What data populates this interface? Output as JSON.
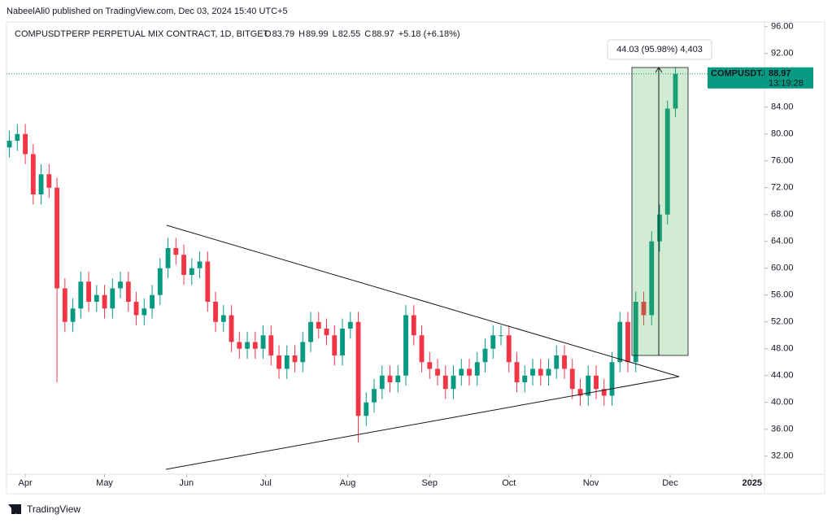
{
  "header": {
    "published": "NabeelAli0 published on TradingView.com, Dec 03, 2024 15:40 UTC+5",
    "footer": "TradingView"
  },
  "chart_data": {
    "type": "candlestick",
    "title": "COMPUSDTPERP PERPETUAL MIX CONTRACT, 1D, BITGET",
    "ohlc_legend": [
      {
        "key": "O",
        "value": 83.79
      },
      {
        "key": "H",
        "value": 89.99
      },
      {
        "key": "L",
        "value": 82.55
      },
      {
        "key": "C",
        "value": 88.97
      }
    ],
    "change": "+5.18 (+6.18%)",
    "up_color": "#089981",
    "down_color": "#f23645",
    "x": [
      -6,
      -3,
      0,
      3,
      6,
      9,
      12,
      15,
      18,
      21,
      24,
      27,
      30,
      33,
      36,
      39,
      42,
      45,
      48,
      51,
      54,
      57,
      60,
      63,
      66,
      69,
      72,
      75,
      78,
      81,
      84,
      87,
      90,
      93,
      96,
      99,
      102,
      105,
      108,
      111,
      114,
      117,
      120,
      123,
      126,
      129,
      132,
      135,
      138,
      141,
      144,
      147,
      150,
      153,
      156,
      159,
      162,
      165,
      168,
      171,
      174,
      177,
      180,
      183,
      186,
      189,
      192,
      195,
      198,
      201,
      204,
      207,
      210,
      213,
      216,
      219,
      222,
      225,
      228,
      231,
      234,
      237,
      240,
      243,
      246
    ],
    "open": [
      78,
      79,
      80,
      77,
      71,
      74,
      72,
      57,
      52,
      54,
      58,
      55,
      56,
      54,
      57,
      58,
      55,
      53,
      54,
      56,
      60,
      63,
      62,
      59,
      60,
      61,
      55,
      52,
      53,
      49,
      48,
      49,
      48,
      50,
      47,
      45,
      47,
      46,
      49,
      52,
      51,
      50,
      47,
      51,
      52,
      38,
      40,
      42,
      44,
      43,
      44,
      53,
      50,
      46,
      45,
      44,
      42,
      44,
      45,
      44,
      46,
      48,
      50,
      50,
      46,
      43,
      44,
      45,
      44,
      45,
      47,
      45,
      42,
      41,
      44,
      42,
      41,
      46,
      52,
      46,
      55,
      53,
      64,
      68,
      83.79
    ],
    "high": [
      80.5,
      81.5,
      81.5,
      78.5,
      75.5,
      75.5,
      73.5,
      58.5,
      55.5,
      59.5,
      59.5,
      57.5,
      57.5,
      58.5,
      59.5,
      59.5,
      56.5,
      55.5,
      57.5,
      61.5,
      64.5,
      64.5,
      63.5,
      61.5,
      62.5,
      62.5,
      56.5,
      54.5,
      54.5,
      50.5,
      50.5,
      50.5,
      51.5,
      51.5,
      48.5,
      48.5,
      48.5,
      50.5,
      53.5,
      53.5,
      52.5,
      51.5,
      52.5,
      53.5,
      53.5,
      41.5,
      43.5,
      45.5,
      45.5,
      45.5,
      54.5,
      54.5,
      51.5,
      47.5,
      46.5,
      45.5,
      45.5,
      46.5,
      46.5,
      47.5,
      49.5,
      51.5,
      51.5,
      51.5,
      47.5,
      45.5,
      46.5,
      46.5,
      46.5,
      48.5,
      48.5,
      46.5,
      43.5,
      45.5,
      45.5,
      43.5,
      47.5,
      53.5,
      53.5,
      56.5,
      56.5,
      65.5,
      69.5,
      85,
      89.99
    ],
    "low": [
      76.5,
      77.5,
      75.5,
      69.5,
      69.5,
      70.5,
      43,
      50.5,
      50.5,
      52.5,
      53.5,
      53.5,
      52.5,
      52.5,
      55.5,
      53.5,
      51.5,
      51.5,
      52.5,
      54.5,
      58.5,
      60.5,
      57.5,
      57.5,
      58.5,
      53.5,
      50.5,
      50.5,
      47.5,
      46.5,
      46.5,
      46.5,
      46.5,
      45.5,
      43.5,
      43.5,
      44.5,
      44.5,
      47.5,
      49.5,
      48.5,
      45.5,
      45.5,
      49.5,
      34,
      36.5,
      38.5,
      40.5,
      41.5,
      41.5,
      42.5,
      48.5,
      44.5,
      43.5,
      42.5,
      40.5,
      40.5,
      42.5,
      42.5,
      42.5,
      44.5,
      46.5,
      48.5,
      44.5,
      41.5,
      41.5,
      42.5,
      42.5,
      42.5,
      43.5,
      43.5,
      40.5,
      39.5,
      39.5,
      40.5,
      39.5,
      39.5,
      44.5,
      44.5,
      44.5,
      51.5,
      51.5,
      62.5,
      66.5,
      82.55
    ],
    "close": [
      79,
      80,
      77,
      71,
      74,
      72,
      57,
      52,
      54,
      58,
      55,
      56,
      54,
      57,
      58,
      55,
      53,
      54,
      56,
      60,
      63,
      62,
      59,
      60,
      61,
      55,
      52,
      53,
      49,
      48,
      49,
      48,
      50,
      47,
      45,
      47,
      46,
      49,
      52,
      51,
      50,
      47,
      51,
      52,
      38,
      40,
      42,
      44,
      43,
      44,
      53,
      50,
      46,
      45,
      44,
      42,
      44,
      45,
      44,
      46,
      48,
      50,
      50,
      46,
      43,
      44,
      45,
      44,
      45,
      47,
      45,
      42,
      41,
      44,
      42,
      41,
      46,
      52,
      46,
      55,
      53,
      64,
      68,
      83.79,
      88.97
    ],
    "xlim": [
      -7.1,
      279.7
    ],
    "xticks": [
      {
        "value": 0,
        "label": "Apr"
      },
      {
        "value": 30,
        "label": "May"
      },
      {
        "value": 61,
        "label": "Jun"
      },
      {
        "value": 91,
        "label": "Jul"
      },
      {
        "value": 122,
        "label": "Aug"
      },
      {
        "value": 153,
        "label": "Sep"
      },
      {
        "value": 183,
        "label": "Oct"
      },
      {
        "value": 214,
        "label": "Nov"
      },
      {
        "value": 244,
        "label": "Dec"
      },
      {
        "value": 275,
        "label": "2025"
      }
    ],
    "ylim": [
      29.3,
      96.7
    ],
    "yticks": [
      {
        "value": 32,
        "label": "32.00"
      },
      {
        "value": 36,
        "label": "36.00"
      },
      {
        "value": 40,
        "label": "40.00"
      },
      {
        "value": 44,
        "label": "44.00"
      },
      {
        "value": 48,
        "label": "48.00"
      },
      {
        "value": 52,
        "label": "52.00"
      },
      {
        "value": 56,
        "label": "56.00"
      },
      {
        "value": 60,
        "label": "60.00"
      },
      {
        "value": 64,
        "label": "64.00"
      },
      {
        "value": 68,
        "label": "68.00"
      },
      {
        "value": 72,
        "label": "72.00"
      },
      {
        "value": 76,
        "label": "76.00"
      },
      {
        "value": 80,
        "label": "80.00"
      },
      {
        "value": 84,
        "label": "84.00"
      },
      {
        "value": 88,
        "label": "88.00"
      },
      {
        "value": 92,
        "label": "92.00"
      },
      {
        "value": 96,
        "label": "96.00"
      }
    ],
    "price_label": {
      "symbol": "COMPUSDT.P",
      "value": 88.97,
      "countdown": "13:19:28"
    },
    "measure_label": "44.03 (95.98%) 4,403"
  }
}
